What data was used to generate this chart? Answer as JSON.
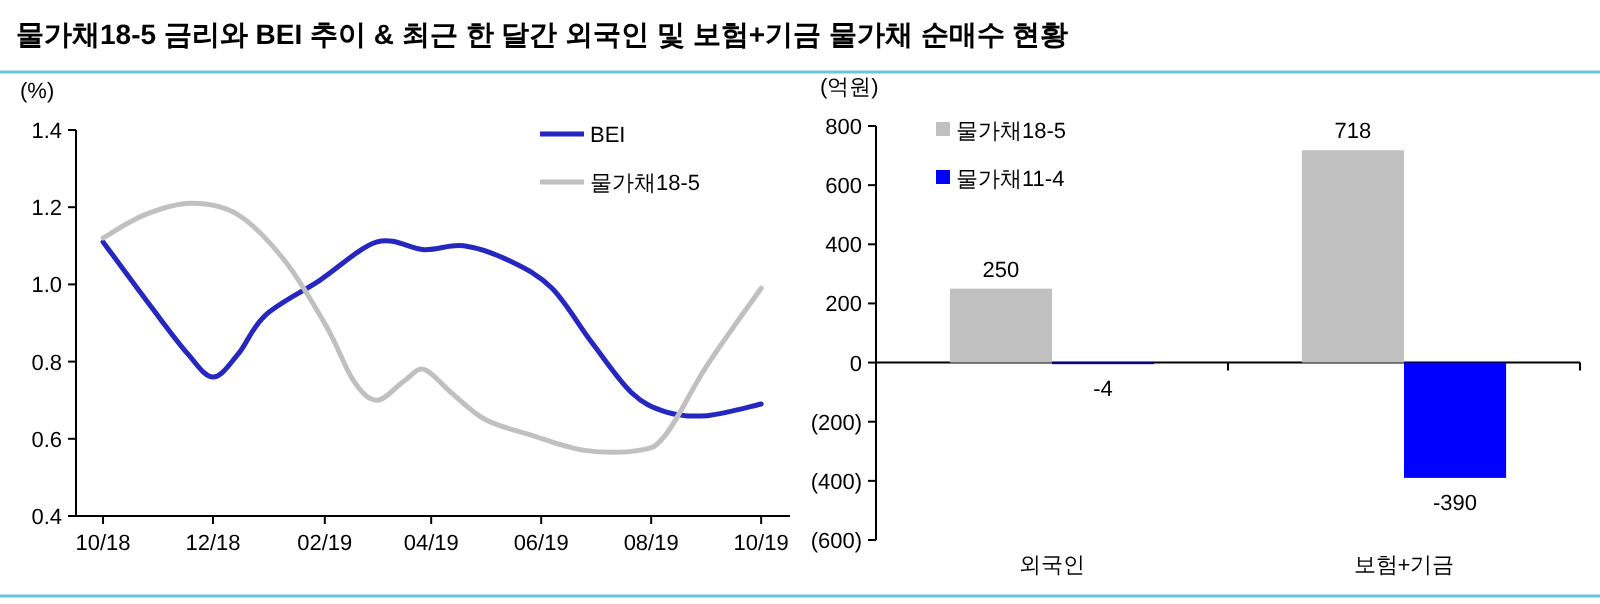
{
  "chart_data": [
    {
      "type": "line",
      "title": "물가채18-5 금리와 BEI 추이 & 최근 한 달간 외국인 및 보험+기금 물가채 순매수 현황",
      "ylabel": "(%)",
      "legend": "top right",
      "line_style": "solid",
      "marker": "none",
      "grid": false,
      "xlim": [
        "2018-09-16",
        "2019-10-17"
      ],
      "xticks": [
        {
          "value": "2018-10-01",
          "label": "10/18"
        },
        {
          "value": "2018-12-01",
          "label": "12/18"
        },
        {
          "value": "2019-02-01",
          "label": "02/19"
        },
        {
          "value": "2019-04-01",
          "label": "04/19"
        },
        {
          "value": "2019-06-01",
          "label": "06/19"
        },
        {
          "value": "2019-08-01",
          "label": "08/19"
        },
        {
          "value": "2019-10-01",
          "label": "10/19"
        }
      ],
      "ylim": [
        0.4,
        1.4
      ],
      "yticks": [
        {
          "value": 0.4,
          "label": "0.4"
        },
        {
          "value": 0.6,
          "label": "0.6"
        },
        {
          "value": 0.8,
          "label": "0.8"
        },
        {
          "value": 1,
          "label": "1.0"
        },
        {
          "value": 1.2,
          "label": "1.2"
        },
        {
          "value": 1.4,
          "label": "1.4"
        }
      ],
      "series": [
        {
          "name": "BEI",
          "color": "#2626c0",
          "x": [
            "2018-10-01",
            "2018-10-28",
            "2018-11-17",
            "2018-12-01",
            "2018-12-15",
            "2018-12-30",
            "2019-01-29",
            "2019-03-02",
            "2019-03-28",
            "2019-04-19",
            "2019-05-15",
            "2019-06-07",
            "2019-06-29",
            "2019-07-21",
            "2019-08-09",
            "2019-09-01",
            "2019-10-01"
          ],
          "values": [
            1.11,
            0.94,
            0.82,
            0.76,
            0.82,
            0.92,
            1.01,
            1.11,
            1.09,
            1.1,
            1.06,
            0.99,
            0.85,
            0.72,
            0.67,
            0.66,
            0.69
          ]
        },
        {
          "name": "물가채18-5",
          "color": "#c0c0c0",
          "x": [
            "2018-10-01",
            "2018-10-24",
            "2018-11-19",
            "2018-12-15",
            "2019-01-10",
            "2019-02-02",
            "2019-02-17",
            "2019-03-02",
            "2019-03-17",
            "2019-03-28",
            "2019-04-12",
            "2019-05-01",
            "2019-05-26",
            "2019-06-25",
            "2019-07-25",
            "2019-08-09",
            "2019-09-01",
            "2019-10-01"
          ],
          "values": [
            1.12,
            1.18,
            1.21,
            1.18,
            1.06,
            0.89,
            0.75,
            0.7,
            0.75,
            0.78,
            0.72,
            0.65,
            0.61,
            0.57,
            0.57,
            0.61,
            0.79,
            0.99
          ]
        }
      ]
    },
    {
      "type": "bar",
      "ylabel": "(억원)",
      "legend": "top left",
      "data_labels": true,
      "categories": [
        "외국인",
        "보험+기금"
      ],
      "ylim": [
        -600,
        800
      ],
      "yticks": [
        {
          "value": -600,
          "label": "(600)"
        },
        {
          "value": -400,
          "label": "(400)"
        },
        {
          "value": -200,
          "label": "(200)"
        },
        0,
        200,
        400,
        600,
        800
      ],
      "series": [
        {
          "name": "물가채18-5",
          "color": "#c0c0c0",
          "values": [
            250,
            718
          ]
        },
        {
          "name": "물가채11-4",
          "color": "#0000ff",
          "values": [
            -4,
            -390
          ]
        }
      ]
    }
  ]
}
